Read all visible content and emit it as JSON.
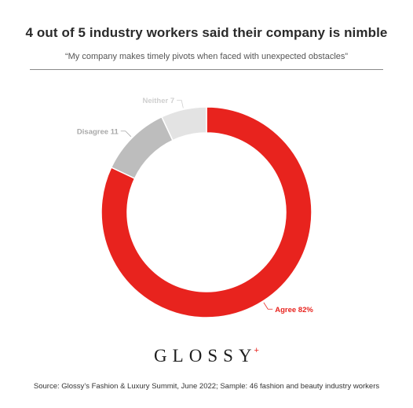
{
  "title": "4 out of 5 industry workers said their company is nimble",
  "subtitle": "“My company makes timely pivots when faced with unexpected obstacles”",
  "chart_data": {
    "type": "pie",
    "style": "donut",
    "categories": [
      "Agree",
      "Disagree",
      "Neither"
    ],
    "values": [
      82,
      11,
      7
    ],
    "labels": [
      "Agree 82%",
      "Disagree 11",
      "Neither 7"
    ],
    "colors": [
      "#e8231e",
      "#bdbdbd",
      "#e3e3e3"
    ],
    "label_colors": [
      "#e8231e",
      "#a9a9a9",
      "#cfcfcf"
    ]
  },
  "logo": {
    "text": "GLOSSY",
    "mark": "+"
  },
  "source": "Source: Glossy’s Fashion & Luxury Summit, June 2022; Sample: 46 fashion and beauty industry workers"
}
